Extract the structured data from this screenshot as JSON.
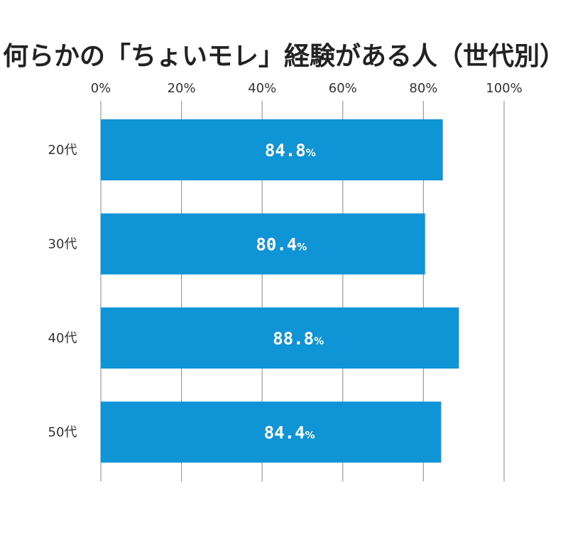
{
  "chart_data": {
    "type": "bar",
    "orientation": "horizontal",
    "title": "何らかの「ちょいモレ」経験がある人（世代別）",
    "categories": [
      "20代",
      "30代",
      "40代",
      "50代"
    ],
    "values": [
      84.8,
      80.4,
      88.8,
      84.4
    ],
    "data_labels": [
      "84.8",
      "80.4",
      "88.8",
      "84.4"
    ],
    "data_label_unit": "%",
    "x_ticks": [
      "0%",
      "20%",
      "40%",
      "60%",
      "80%",
      "100%"
    ],
    "x_tick_values": [
      0,
      20,
      40,
      60,
      80,
      100
    ],
    "xlim": [
      0,
      100
    ],
    "xlabel": "",
    "ylabel": "",
    "x_axis_position": "top",
    "grid": true,
    "legend": "none",
    "bar_color": "#0f95d6",
    "grid_color": "#9a9a9a",
    "data_label_color": "#ffffff"
  }
}
